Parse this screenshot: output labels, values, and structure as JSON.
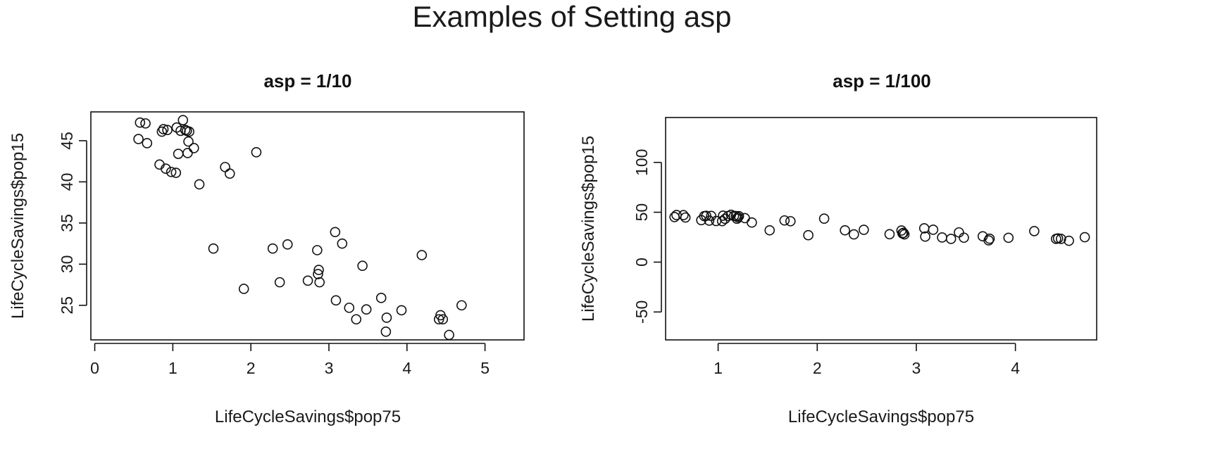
{
  "figure": {
    "title": "Examples of Setting asp"
  },
  "chart_data": [
    {
      "type": "scatter",
      "title": "asp = 1/10",
      "xlabel": "LifeCycleSavings$pop75",
      "ylabel": "LifeCycleSavings$pop15",
      "xlim": [
        -0.05,
        5.5
      ],
      "ylim": [
        20.8,
        48.5
      ],
      "xticks": [
        0,
        1,
        2,
        3,
        4,
        5
      ],
      "yticks": [
        25,
        30,
        35,
        40,
        45
      ],
      "grid": false,
      "legend": "none",
      "x": [
        0.56,
        0.58,
        0.65,
        0.67,
        0.83,
        0.86,
        0.88,
        0.91,
        0.93,
        0.98,
        1.04,
        1.05,
        1.07,
        1.1,
        1.13,
        1.16,
        1.18,
        1.19,
        1.2,
        1.21,
        1.27,
        1.34,
        1.52,
        1.67,
        1.73,
        1.91,
        2.07,
        2.28,
        2.37,
        2.47,
        2.73,
        2.85,
        2.87,
        2.86,
        2.88,
        3.08,
        3.09,
        3.17,
        3.26,
        3.35,
        3.43,
        3.48,
        3.67,
        3.73,
        3.74,
        3.93,
        4.19,
        4.41,
        4.43,
        4.46,
        4.54,
        4.7
      ],
      "y": [
        45.2,
        47.2,
        47.1,
        44.7,
        42.1,
        46.1,
        46.4,
        41.6,
        46.3,
        41.2,
        41.1,
        46.6,
        43.4,
        46.2,
        47.5,
        46.3,
        46.2,
        43.5,
        44.9,
        46.1,
        44.1,
        39.7,
        31.9,
        41.8,
        41.0,
        27.0,
        43.6,
        31.9,
        27.8,
        32.4,
        28.0,
        31.7,
        29.3,
        28.8,
        27.8,
        33.9,
        25.6,
        32.5,
        24.7,
        23.3,
        29.8,
        24.5,
        25.9,
        21.8,
        23.5,
        24.4,
        31.1,
        23.3,
        23.8,
        23.3,
        21.4,
        25.0
      ]
    },
    {
      "type": "scatter",
      "title": "asp = 1/100",
      "xlabel": "LifeCycleSavings$pop75",
      "ylabel": "LifeCycleSavings$pop15",
      "xlim": [
        0.47,
        4.82
      ],
      "ylim": [
        -78,
        145
      ],
      "xticks": [
        1,
        2,
        3,
        4
      ],
      "yticks": [
        -50,
        0,
        50,
        100
      ],
      "grid": false,
      "legend": "none",
      "x": [
        0.56,
        0.58,
        0.65,
        0.67,
        0.83,
        0.86,
        0.88,
        0.91,
        0.93,
        0.98,
        1.04,
        1.05,
        1.07,
        1.1,
        1.13,
        1.16,
        1.18,
        1.19,
        1.2,
        1.21,
        1.27,
        1.34,
        1.52,
        1.67,
        1.73,
        1.91,
        2.07,
        2.28,
        2.37,
        2.47,
        2.73,
        2.85,
        2.87,
        2.86,
        2.88,
        3.08,
        3.09,
        3.17,
        3.26,
        3.35,
        3.43,
        3.48,
        3.67,
        3.73,
        3.74,
        3.93,
        4.19,
        4.41,
        4.43,
        4.46,
        4.54,
        4.7
      ],
      "y": [
        45.2,
        47.2,
        47.1,
        44.7,
        42.1,
        46.1,
        46.4,
        41.6,
        46.3,
        41.2,
        41.1,
        46.6,
        43.4,
        46.2,
        47.5,
        46.3,
        46.2,
        43.5,
        44.9,
        46.1,
        44.1,
        39.7,
        31.9,
        41.8,
        41.0,
        27.0,
        43.6,
        31.9,
        27.8,
        32.4,
        28.0,
        31.7,
        29.3,
        28.8,
        27.8,
        33.9,
        25.6,
        32.5,
        24.7,
        23.3,
        29.8,
        24.5,
        25.9,
        21.8,
        23.5,
        24.4,
        31.1,
        23.3,
        23.8,
        23.3,
        21.4,
        25.0
      ]
    }
  ]
}
